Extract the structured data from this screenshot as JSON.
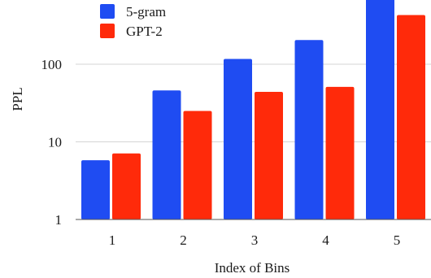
{
  "chart_data": {
    "type": "bar",
    "xlabel": "Index of Bins",
    "ylabel": "PPL",
    "yscale": "log",
    "ylim": [
      1,
      1000
    ],
    "yticks": [
      1,
      10,
      100
    ],
    "grid": "horizontal",
    "legend_position": "top-left",
    "categories": [
      "1",
      "2",
      "3",
      "4",
      "5"
    ],
    "series": [
      {
        "name": "5-gram",
        "color": "#1f4cf2",
        "values": [
          5.8,
          46,
          117,
          205,
          1000
        ]
      },
      {
        "name": "GPT-2",
        "color": "#ff2a0a",
        "values": [
          7.1,
          25,
          44,
          51,
          430
        ]
      }
    ]
  }
}
